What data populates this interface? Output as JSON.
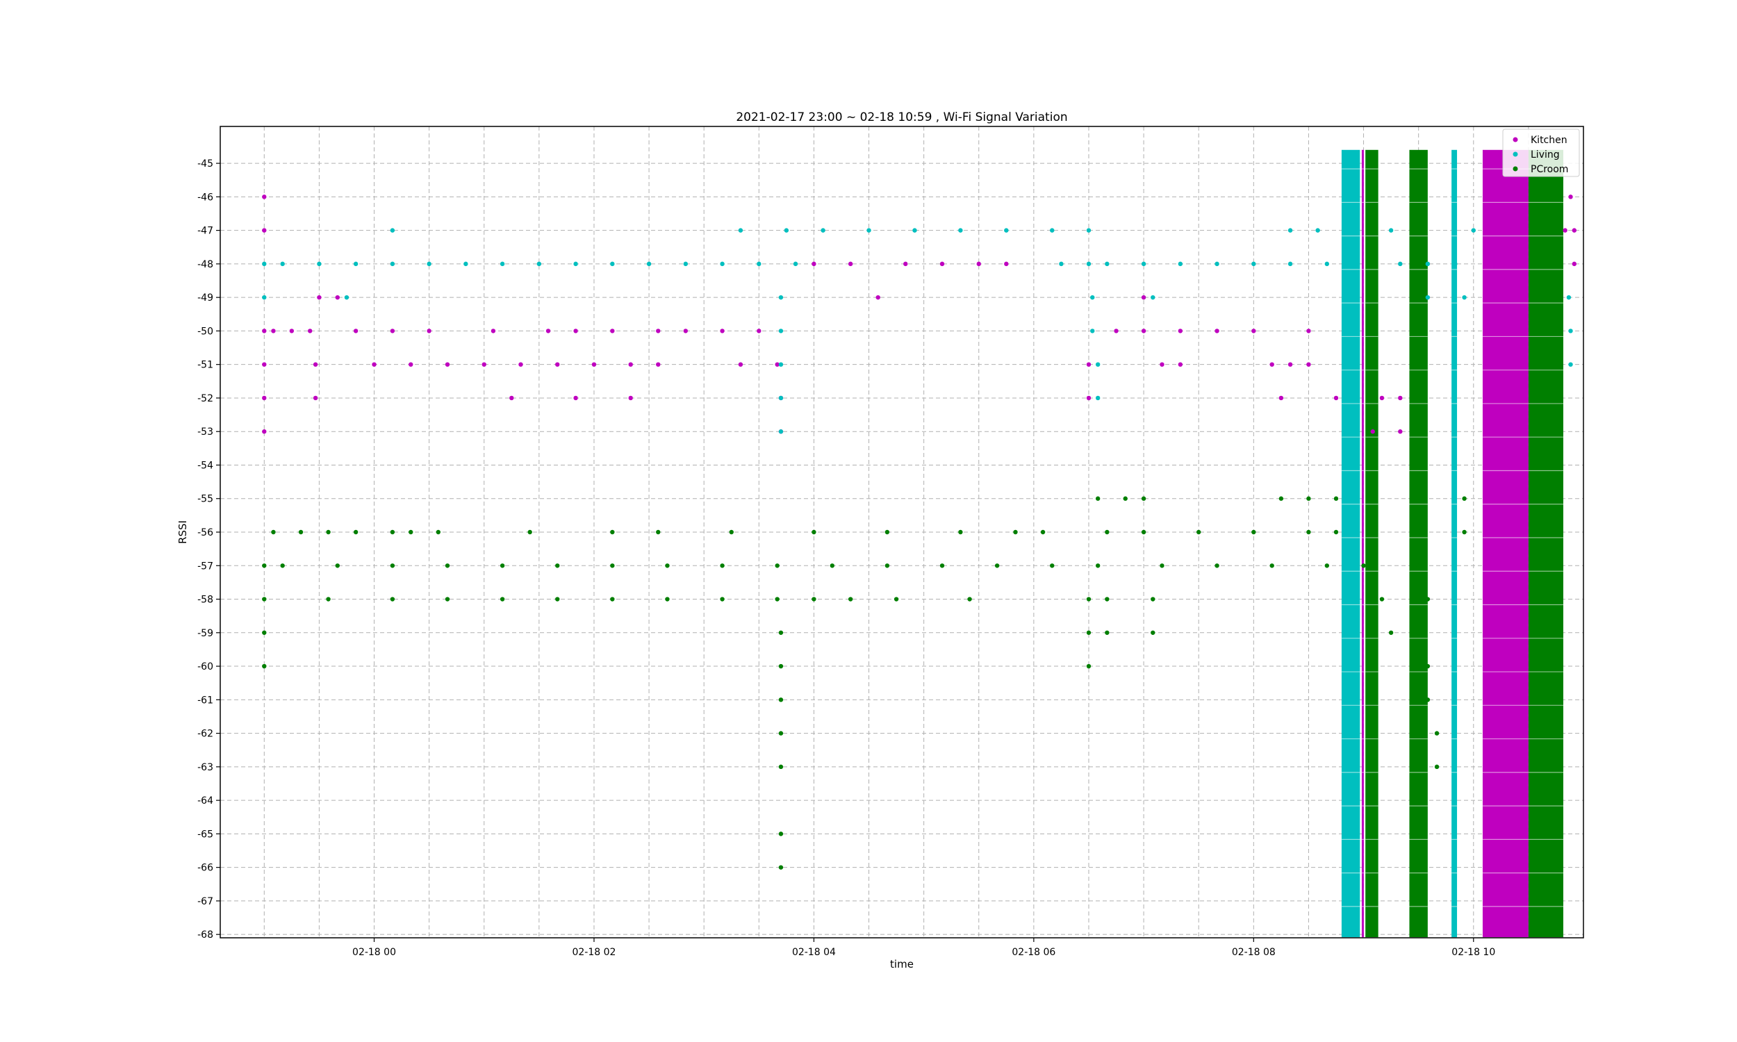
{
  "chart_data": {
    "type": "scatter",
    "title": "2021-02-17 23:00 ~ 02-18 10:59 , Wi-Fi Signal Variation",
    "xlabel": "time",
    "ylabel": "RSSI",
    "xlim": [
      "2021-02-17 22:36",
      "2021-02-18 11:00"
    ],
    "ylim": [
      -68.1,
      -43.9
    ],
    "x_ticks": [
      {
        "time": "2021-02-18 00:00",
        "label": "02-18 00"
      },
      {
        "time": "2021-02-18 02:00",
        "label": "02-18 02"
      },
      {
        "time": "2021-02-18 04:00",
        "label": "02-18 04"
      },
      {
        "time": "2021-02-18 06:00",
        "label": "02-18 06"
      },
      {
        "time": "2021-02-18 08:00",
        "label": "02-18 08"
      },
      {
        "time": "2021-02-18 10:00",
        "label": "02-18 10"
      }
    ],
    "y_ticks": [
      -45,
      -46,
      -47,
      -48,
      -49,
      -50,
      -51,
      -52,
      -53,
      -54,
      -55,
      -56,
      -57,
      -58,
      -59,
      -60,
      -61,
      -62,
      -63,
      -64,
      -65,
      -66,
      -67,
      -68
    ],
    "grid": true,
    "legend_position": "top-right",
    "series": [
      {
        "name": "Kitchen",
        "color": "#bf00bf",
        "points": [
          [
            "2021-02-17 23:00",
            -46
          ],
          [
            "2021-02-17 23:00",
            -47
          ],
          [
            "2021-02-17 23:00",
            -50
          ],
          [
            "2021-02-17 23:00",
            -51
          ],
          [
            "2021-02-17 23:00",
            -52
          ],
          [
            "2021-02-17 23:00",
            -53
          ],
          [
            "2021-02-17 23:05",
            -50
          ],
          [
            "2021-02-17 23:15",
            -50
          ],
          [
            "2021-02-17 23:25",
            -50
          ],
          [
            "2021-02-17 23:30",
            -49
          ],
          [
            "2021-02-17 23:40",
            -49
          ],
          [
            "2021-02-17 23:50",
            -50
          ],
          [
            "2021-02-17 23:28",
            -51
          ],
          [
            "2021-02-17 23:28",
            -52
          ],
          [
            "2021-02-18 00:00",
            -51
          ],
          [
            "2021-02-18 00:10",
            -50
          ],
          [
            "2021-02-18 00:20",
            -51
          ],
          [
            "2021-02-18 00:30",
            -50
          ],
          [
            "2021-02-18 00:40",
            -51
          ],
          [
            "2021-02-18 01:00",
            -51
          ],
          [
            "2021-02-18 01:20",
            -51
          ],
          [
            "2021-02-18 01:40",
            -51
          ],
          [
            "2021-02-18 01:05",
            -50
          ],
          [
            "2021-02-18 01:35",
            -50
          ],
          [
            "2021-02-18 01:50",
            -50
          ],
          [
            "2021-02-18 01:15",
            -52
          ],
          [
            "2021-02-18 01:50",
            -52
          ],
          [
            "2021-02-18 02:00",
            -51
          ],
          [
            "2021-02-18 02:10",
            -50
          ],
          [
            "2021-02-18 02:20",
            -51
          ],
          [
            "2021-02-18 02:20",
            -52
          ],
          [
            "2021-02-18 02:35",
            -51
          ],
          [
            "2021-02-18 02:35",
            -50
          ],
          [
            "2021-02-18 02:50",
            -50
          ],
          [
            "2021-02-18 03:10",
            -50
          ],
          [
            "2021-02-18 03:20",
            -51
          ],
          [
            "2021-02-18 03:30",
            -50
          ],
          [
            "2021-02-18 03:40",
            -51
          ],
          [
            "2021-02-18 03:42",
            -52
          ],
          [
            "2021-02-18 03:42",
            -53
          ],
          [
            "2021-02-18 04:00",
            -48
          ],
          [
            "2021-02-18 04:20",
            -48
          ],
          [
            "2021-02-18 04:35",
            -49
          ],
          [
            "2021-02-18 04:50",
            -48
          ],
          [
            "2021-02-18 05:10",
            -48
          ],
          [
            "2021-02-18 05:30",
            -48
          ],
          [
            "2021-02-18 05:45",
            -48
          ],
          [
            "2021-02-18 06:30",
            -51
          ],
          [
            "2021-02-18 06:30",
            -52
          ],
          [
            "2021-02-18 06:45",
            -50
          ],
          [
            "2021-02-18 07:00",
            -50
          ],
          [
            "2021-02-18 07:20",
            -50
          ],
          [
            "2021-02-18 07:40",
            -50
          ],
          [
            "2021-02-18 08:00",
            -50
          ],
          [
            "2021-02-18 07:00",
            -49
          ],
          [
            "2021-02-18 07:10",
            -51
          ],
          [
            "2021-02-18 07:20",
            -51
          ],
          [
            "2021-02-18 08:10",
            -51
          ],
          [
            "2021-02-18 08:20",
            -51
          ],
          [
            "2021-02-18 08:30",
            -51
          ],
          [
            "2021-02-18 08:15",
            -52
          ],
          [
            "2021-02-18 08:30",
            -50
          ],
          [
            "2021-02-18 08:45",
            -52
          ],
          [
            "2021-02-18 09:10",
            -52
          ],
          [
            "2021-02-18 09:20",
            -52
          ],
          [
            "2021-02-18 09:05",
            -53
          ],
          [
            "2021-02-18 09:20",
            -53
          ],
          [
            "2021-02-18 10:20",
            -47
          ],
          [
            "2021-02-18 10:50",
            -47
          ],
          [
            "2021-02-18 10:55",
            -47
          ],
          [
            "2021-02-18 10:55",
            -48
          ],
          [
            "2021-02-18 10:53",
            -46
          ]
        ],
        "bands": [
          [
            "2021-02-18 08:59",
            "2021-02-18 09:00"
          ],
          [
            "2021-02-18 10:05",
            "2021-02-18 10:30"
          ]
        ]
      },
      {
        "name": "Living",
        "color": "#00bfbf",
        "points": [
          [
            "2021-02-17 23:00",
            -48
          ],
          [
            "2021-02-17 23:10",
            -48
          ],
          [
            "2021-02-17 23:30",
            -48
          ],
          [
            "2021-02-17 23:50",
            -48
          ],
          [
            "2021-02-18 00:10",
            -48
          ],
          [
            "2021-02-18 00:30",
            -48
          ],
          [
            "2021-02-18 00:50",
            -48
          ],
          [
            "2021-02-18 01:10",
            -48
          ],
          [
            "2021-02-18 01:30",
            -48
          ],
          [
            "2021-02-18 01:50",
            -48
          ],
          [
            "2021-02-18 02:10",
            -48
          ],
          [
            "2021-02-18 02:30",
            -48
          ],
          [
            "2021-02-18 02:50",
            -48
          ],
          [
            "2021-02-18 03:10",
            -48
          ],
          [
            "2021-02-18 03:30",
            -48
          ],
          [
            "2021-02-18 03:50",
            -48
          ],
          [
            "2021-02-17 23:00",
            -49
          ],
          [
            "2021-02-17 23:45",
            -49
          ],
          [
            "2021-02-18 00:10",
            -47
          ],
          [
            "2021-02-18 03:20",
            -47
          ],
          [
            "2021-02-18 03:42",
            -49
          ],
          [
            "2021-02-18 03:42",
            -50
          ],
          [
            "2021-02-18 03:42",
            -51
          ],
          [
            "2021-02-18 03:42",
            -52
          ],
          [
            "2021-02-18 03:42",
            -53
          ],
          [
            "2021-02-18 03:45",
            -47
          ],
          [
            "2021-02-18 04:05",
            -47
          ],
          [
            "2021-02-18 04:30",
            -47
          ],
          [
            "2021-02-18 04:55",
            -47
          ],
          [
            "2021-02-18 05:20",
            -47
          ],
          [
            "2021-02-18 05:45",
            -47
          ],
          [
            "2021-02-18 06:10",
            -47
          ],
          [
            "2021-02-18 06:30",
            -47
          ],
          [
            "2021-02-18 06:15",
            -48
          ],
          [
            "2021-02-18 06:30",
            -48
          ],
          [
            "2021-02-18 06:40",
            -48
          ],
          [
            "2021-02-18 07:00",
            -48
          ],
          [
            "2021-02-18 07:20",
            -48
          ],
          [
            "2021-02-18 07:40",
            -48
          ],
          [
            "2021-02-18 08:00",
            -48
          ],
          [
            "2021-02-18 08:20",
            -48
          ],
          [
            "2021-02-18 08:40",
            -48
          ],
          [
            "2021-02-18 06:32",
            -49
          ],
          [
            "2021-02-18 06:32",
            -50
          ],
          [
            "2021-02-18 06:35",
            -51
          ],
          [
            "2021-02-18 06:35",
            -52
          ],
          [
            "2021-02-18 07:05",
            -49
          ],
          [
            "2021-02-18 08:20",
            -47
          ],
          [
            "2021-02-18 08:35",
            -47
          ],
          [
            "2021-02-18 08:50",
            -47
          ],
          [
            "2021-02-18 09:20",
            -48
          ],
          [
            "2021-02-18 09:35",
            -48
          ],
          [
            "2021-02-18 09:50",
            -48
          ],
          [
            "2021-02-18 09:15",
            -47
          ],
          [
            "2021-02-18 09:35",
            -49
          ],
          [
            "2021-02-18 09:55",
            -49
          ],
          [
            "2021-02-18 10:00",
            -47
          ],
          [
            "2021-02-18 10:52",
            -49
          ],
          [
            "2021-02-18 10:53",
            -50
          ],
          [
            "2021-02-18 10:53",
            -51
          ]
        ],
        "bands": [
          [
            "2021-02-18 08:48",
            "2021-02-18 08:58"
          ],
          [
            "2021-02-18 09:48",
            "2021-02-18 09:51"
          ]
        ]
      },
      {
        "name": "PCroom",
        "color": "#007f00",
        "points": [
          [
            "2021-02-17 23:00",
            -57
          ],
          [
            "2021-02-17 23:00",
            -58
          ],
          [
            "2021-02-17 23:00",
            -59
          ],
          [
            "2021-02-17 23:00",
            -60
          ],
          [
            "2021-02-17 23:05",
            -56
          ],
          [
            "2021-02-17 23:20",
            -56
          ],
          [
            "2021-02-17 23:35",
            -56
          ],
          [
            "2021-02-17 23:50",
            -56
          ],
          [
            "2021-02-18 00:10",
            -56
          ],
          [
            "2021-02-18 00:20",
            -56
          ],
          [
            "2021-02-18 00:35",
            -56
          ],
          [
            "2021-02-18 01:25",
            -56
          ],
          [
            "2021-02-18 02:10",
            -56
          ],
          [
            "2021-02-18 02:35",
            -56
          ],
          [
            "2021-02-18 03:15",
            -56
          ],
          [
            "2021-02-18 04:00",
            -56
          ],
          [
            "2021-02-18 04:40",
            -56
          ],
          [
            "2021-02-18 05:20",
            -56
          ],
          [
            "2021-02-18 05:50",
            -56
          ],
          [
            "2021-02-18 06:05",
            -56
          ],
          [
            "2021-02-18 06:40",
            -56
          ],
          [
            "2021-02-18 07:00",
            -56
          ],
          [
            "2021-02-18 07:30",
            -56
          ],
          [
            "2021-02-18 08:00",
            -56
          ],
          [
            "2021-02-18 08:30",
            -56
          ],
          [
            "2021-02-18 08:45",
            -56
          ],
          [
            "2021-02-18 09:30",
            -56
          ],
          [
            "2021-02-18 09:55",
            -56
          ],
          [
            "2021-02-17 23:10",
            -57
          ],
          [
            "2021-02-17 23:40",
            -57
          ],
          [
            "2021-02-18 00:10",
            -57
          ],
          [
            "2021-02-18 00:40",
            -57
          ],
          [
            "2021-02-18 01:10",
            -57
          ],
          [
            "2021-02-18 01:40",
            -57
          ],
          [
            "2021-02-18 02:10",
            -57
          ],
          [
            "2021-02-18 02:40",
            -57
          ],
          [
            "2021-02-18 03:10",
            -57
          ],
          [
            "2021-02-18 03:40",
            -57
          ],
          [
            "2021-02-18 04:10",
            -57
          ],
          [
            "2021-02-18 04:40",
            -57
          ],
          [
            "2021-02-18 05:10",
            -57
          ],
          [
            "2021-02-18 05:40",
            -57
          ],
          [
            "2021-02-18 06:10",
            -57
          ],
          [
            "2021-02-18 06:35",
            -57
          ],
          [
            "2021-02-18 07:10",
            -57
          ],
          [
            "2021-02-18 07:40",
            -57
          ],
          [
            "2021-02-18 08:10",
            -57
          ],
          [
            "2021-02-18 08:40",
            -57
          ],
          [
            "2021-02-18 09:00",
            -57
          ],
          [
            "2021-02-18 09:30",
            -57
          ],
          [
            "2021-02-17 23:35",
            -58
          ],
          [
            "2021-02-18 00:10",
            -58
          ],
          [
            "2021-02-18 00:40",
            -58
          ],
          [
            "2021-02-18 01:10",
            -58
          ],
          [
            "2021-02-18 01:40",
            -58
          ],
          [
            "2021-02-18 02:10",
            -58
          ],
          [
            "2021-02-18 02:40",
            -58
          ],
          [
            "2021-02-18 03:10",
            -58
          ],
          [
            "2021-02-18 03:40",
            -58
          ],
          [
            "2021-02-18 04:00",
            -58
          ],
          [
            "2021-02-18 04:20",
            -58
          ],
          [
            "2021-02-18 04:45",
            -58
          ],
          [
            "2021-02-18 05:25",
            -58
          ],
          [
            "2021-02-18 06:30",
            -58
          ],
          [
            "2021-02-18 06:40",
            -58
          ],
          [
            "2021-02-18 07:05",
            -58
          ],
          [
            "2021-02-18 09:10",
            -58
          ],
          [
            "2021-02-18 09:35",
            -58
          ],
          [
            "2021-02-18 03:42",
            -59
          ],
          [
            "2021-02-18 03:42",
            -60
          ],
          [
            "2021-02-18 03:42",
            -61
          ],
          [
            "2021-02-18 03:42",
            -62
          ],
          [
            "2021-02-18 03:42",
            -63
          ],
          [
            "2021-02-18 03:42",
            -65
          ],
          [
            "2021-02-18 03:42",
            -66
          ],
          [
            "2021-02-18 06:30",
            -59
          ],
          [
            "2021-02-18 06:40",
            -59
          ],
          [
            "2021-02-18 07:05",
            -59
          ],
          [
            "2021-02-18 06:30",
            -60
          ],
          [
            "2021-02-18 06:35",
            -55
          ],
          [
            "2021-02-18 06:50",
            -55
          ],
          [
            "2021-02-18 07:00",
            -55
          ],
          [
            "2021-02-18 08:15",
            -55
          ],
          [
            "2021-02-18 08:30",
            -55
          ],
          [
            "2021-02-18 08:45",
            -55
          ],
          [
            "2021-02-18 09:15",
            -59
          ],
          [
            "2021-02-18 09:30",
            -59
          ],
          [
            "2021-02-18 09:35",
            -60
          ],
          [
            "2021-02-18 09:35",
            -61
          ],
          [
            "2021-02-18 09:40",
            -62
          ],
          [
            "2021-02-18 09:40",
            -63
          ],
          [
            "2021-02-18 09:55",
            -55
          ],
          [
            "2021-02-18 10:45",
            -59
          ],
          [
            "2021-02-18 10:45",
            -60
          ]
        ],
        "bands": [
          [
            "2021-02-18 09:01",
            "2021-02-18 09:08"
          ],
          [
            "2021-02-18 09:25",
            "2021-02-18 09:35"
          ],
          [
            "2021-02-18 10:30",
            "2021-02-18 10:49"
          ]
        ]
      }
    ]
  }
}
